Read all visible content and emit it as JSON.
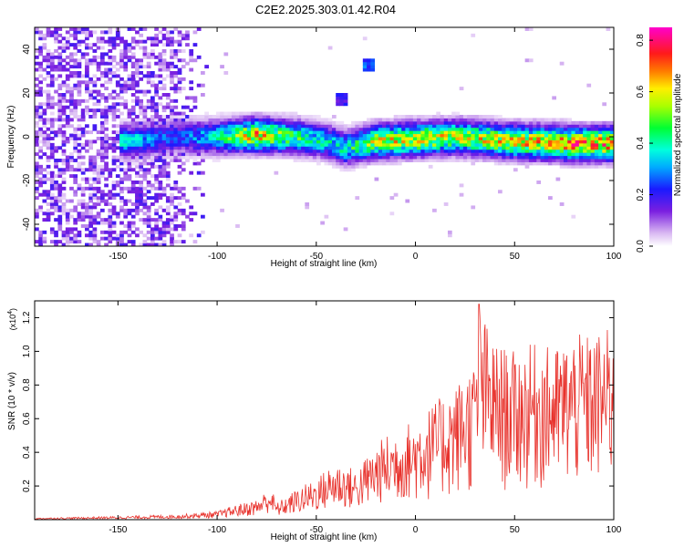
{
  "chart_data": [
    {
      "type": "heatmap",
      "title": "C2E2.2025.303.01.42.R04",
      "xlabel": "Height of straight line (km)",
      "ylabel": "Frequency (Hz)",
      "xlim": [
        -192,
        100
      ],
      "ylim": [
        -50,
        50
      ],
      "x_ticks": [
        -150,
        -100,
        -50,
        0,
        50,
        100
      ],
      "y_ticks": [
        -40,
        -20,
        0,
        20,
        40
      ],
      "colorbar": {
        "label": "Normalized spectral amplitude",
        "range": [
          0,
          0.85
        ],
        "ticks": [
          0.0,
          0.2,
          0.4,
          0.6,
          0.8
        ]
      },
      "features": {
        "noise_region_x": [
          -192,
          -105
        ],
        "band_center_x": [
          -145,
          -120,
          -100,
          -80,
          -60,
          -45,
          -35,
          -20,
          0,
          20,
          50,
          80,
          100
        ],
        "band_center_freq": [
          -2,
          0,
          0,
          1,
          0,
          -2,
          -5,
          -2,
          -1,
          0,
          -2,
          -3,
          -3
        ],
        "band_peak_amplitude": [
          0.4,
          0.3,
          0.45,
          0.8,
          0.55,
          0.45,
          0.5,
          0.7,
          0.75,
          0.7,
          0.75,
          0.85,
          0.85
        ],
        "spurs": [
          {
            "x": -24,
            "freq": 33,
            "amplitude": 0.3
          },
          {
            "x": -38,
            "freq": 17,
            "amplitude": 0.22
          }
        ]
      }
    },
    {
      "type": "line",
      "title": "",
      "xlabel": "Height of straight line (km)",
      "ylabel": "SNR (10 * v/v)",
      "scale_label": "(x10",
      "scale_exponent": "4",
      "xlim": [
        -192,
        100
      ],
      "ylim": [
        0,
        1.3
      ],
      "x_ticks": [
        -150,
        -100,
        -50,
        0,
        50,
        100
      ],
      "y_ticks": [
        0.2,
        0.4,
        0.6,
        0.8,
        1.0,
        1.2
      ],
      "series": [
        {
          "name": "SNR",
          "color": "#e8322c",
          "x": [
            -192,
            -150,
            -120,
            -100,
            -90,
            -80,
            -73,
            -70,
            -60,
            -50,
            -40,
            -30,
            -20,
            -10,
            0,
            10,
            20,
            30,
            32,
            40,
            50,
            60,
            70,
            80,
            90,
            100
          ],
          "envelope": [
            0.01,
            0.02,
            0.03,
            0.05,
            0.09,
            0.12,
            0.2,
            0.1,
            0.18,
            0.25,
            0.35,
            0.3,
            0.45,
            0.55,
            0.6,
            0.7,
            0.8,
            0.95,
            1.28,
            1.05,
            1.0,
            1.05,
            1.02,
            1.1,
            1.1,
            1.15
          ]
        }
      ]
    }
  ]
}
